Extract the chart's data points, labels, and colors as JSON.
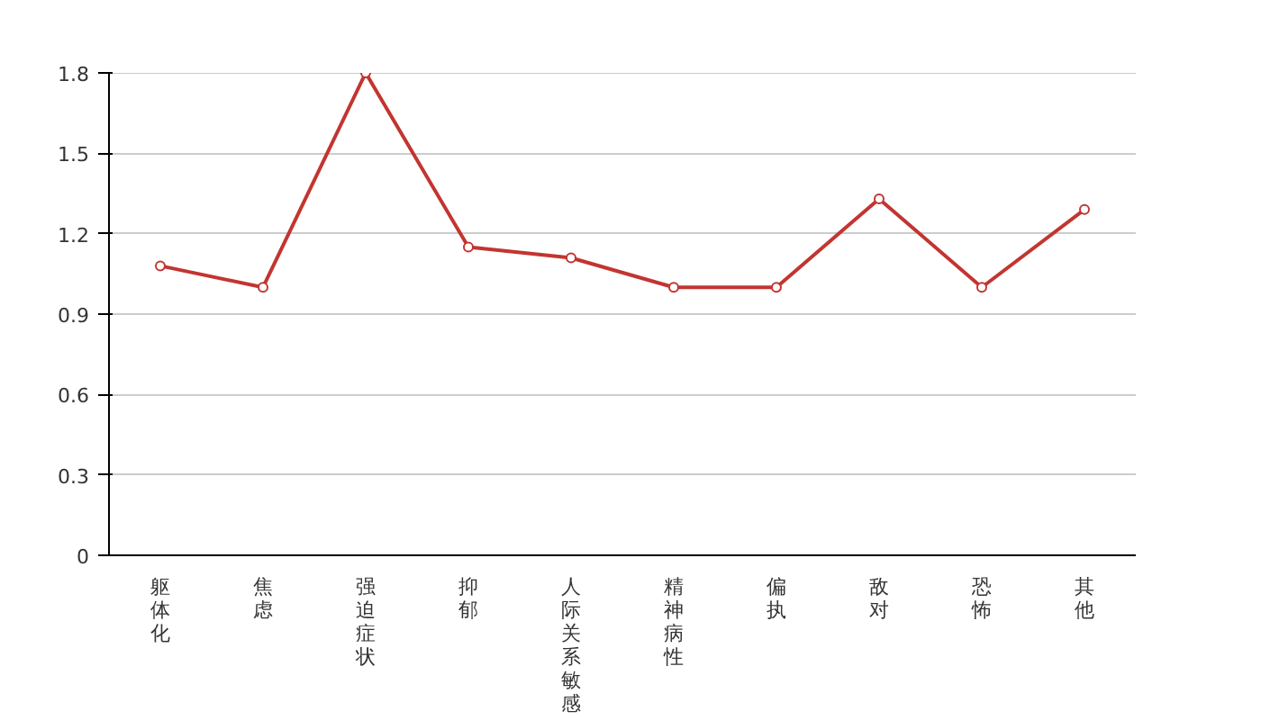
{
  "chart_data": {
    "type": "line",
    "categories": [
      "躯体化",
      "焦虑",
      "强迫症状",
      "抑郁",
      "人际关系敏感",
      "精神病性",
      "偏执",
      "敌对",
      "恐怖",
      "其他"
    ],
    "series": [
      {
        "color": "#c23531",
        "values": [
          1.08,
          1.0,
          1.8,
          1.15,
          1.11,
          1.0,
          1.0,
          1.33,
          1.0,
          1.29
        ]
      }
    ],
    "ylim": [
      0,
      1.8
    ],
    "yticks": [
      0,
      0.3,
      0.6,
      0.9,
      1.2,
      1.5,
      1.8
    ],
    "grid": "y",
    "marker": "circle",
    "line_style": "solid"
  }
}
